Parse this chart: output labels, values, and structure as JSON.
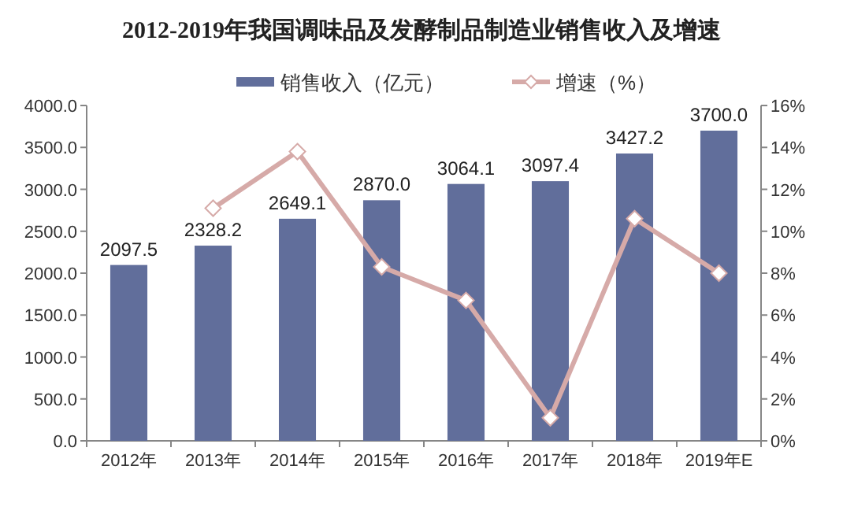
{
  "chart_data": {
    "type": "bar",
    "title": "2012-2019年我国调味品及发酵制品制造业销售收入及增速",
    "categories": [
      "2012年",
      "2013年",
      "2014年",
      "2015年",
      "2016年",
      "2017年",
      "2018年",
      "2019年E"
    ],
    "series": [
      {
        "name": "销售收入（亿元）",
        "color": "#616e9b",
        "values": [
          2097.5,
          2328.2,
          2649.1,
          2870.0,
          3064.1,
          3097.4,
          3427.2,
          3700.0
        ],
        "value_labels": [
          "2097.5",
          "2328.2",
          "2649.1",
          "2870.0",
          "3064.1",
          "3097.4",
          "3427.2",
          "3700.0"
        ]
      },
      {
        "name": "增速（%）",
        "type": "line",
        "axis": "y2",
        "color": "#d6aaa8",
        "marker": "diamond",
        "values": [
          null,
          11.1,
          13.8,
          8.3,
          6.7,
          1.1,
          10.6,
          8.0
        ]
      }
    ],
    "ylim": [
      0,
      4000
    ],
    "yticks": [
      {
        "value": 0,
        "label": "0.0"
      },
      {
        "value": 500,
        "label": "500.0"
      },
      {
        "value": 1000,
        "label": "1000.0"
      },
      {
        "value": 1500,
        "label": "1500.0"
      },
      {
        "value": 2000,
        "label": "2000.0"
      },
      {
        "value": 2500,
        "label": "2500.0"
      },
      {
        "value": 3000,
        "label": "3000.0"
      },
      {
        "value": 3500,
        "label": "3500.0"
      },
      {
        "value": 4000,
        "label": "4000.0"
      }
    ],
    "y2lim": [
      0,
      16
    ],
    "y2ticks": [
      {
        "value": 0,
        "label": "0%"
      },
      {
        "value": 2,
        "label": "2%"
      },
      {
        "value": 4,
        "label": "4%"
      },
      {
        "value": 6,
        "label": "6%"
      },
      {
        "value": 8,
        "label": "8%"
      },
      {
        "value": 10,
        "label": "10%"
      },
      {
        "value": 12,
        "label": "12%"
      },
      {
        "value": 14,
        "label": "14%"
      },
      {
        "value": 16,
        "label": "16%"
      }
    ],
    "legend": "top",
    "grid": false
  }
}
